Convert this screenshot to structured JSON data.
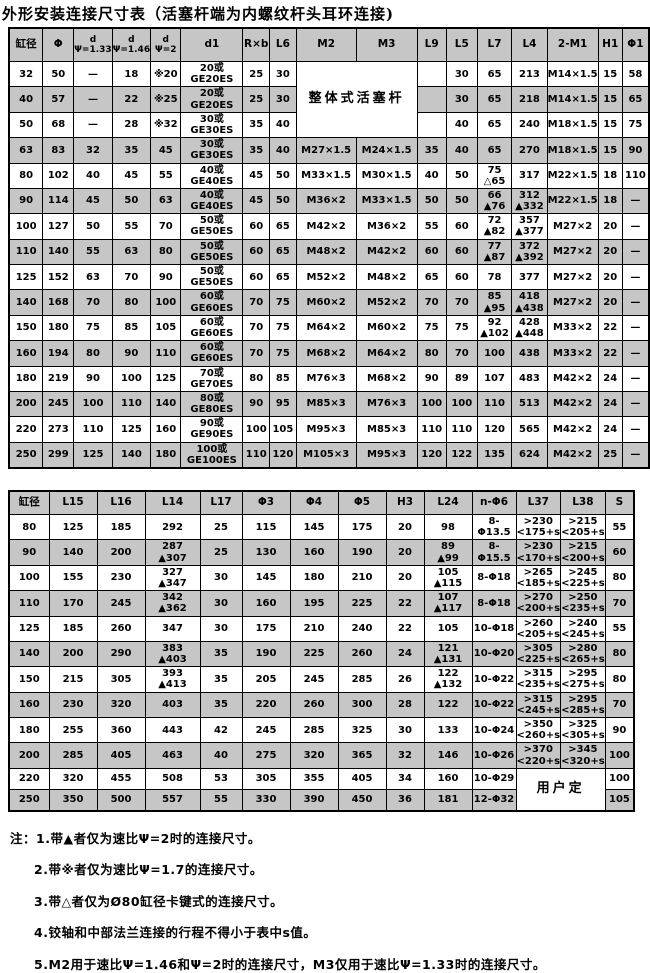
{
  "title": "外形安装连接尺寸表（活塞杆端为内螺纹杆头耳环连接)",
  "table1": {
    "headers": [
      "缸径",
      "Φ",
      "d\nΨ=1.33",
      "d\nΨ=1.46",
      "d\nΨ=2",
      "d1",
      "R×b",
      "L6",
      "M2",
      "M3",
      "L9",
      "L5",
      "L7",
      "L4",
      "2-M1",
      "H1",
      "Φ1"
    ],
    "merges": [
      {
        "row": 0,
        "col": 8,
        "rowspan": 3,
        "colspan": 2,
        "text": "整体式活塞杆"
      }
    ],
    "rows": [
      [
        "32",
        "50",
        "—",
        "18",
        "※20",
        "20或GE20ES",
        "25",
        "30",
        null,
        null,
        "",
        "30",
        "65",
        "213",
        "M14×1.5",
        "15",
        "58"
      ],
      [
        "40",
        "57",
        "—",
        "22",
        "※25",
        "20或GE20ES",
        "25",
        "30",
        null,
        null,
        "",
        "30",
        "65",
        "218",
        "M14×1.5",
        "15",
        "65"
      ],
      [
        "50",
        "68",
        "—",
        "28",
        "※32",
        "30或GE30ES",
        "35",
        "40",
        null,
        null,
        "",
        "40",
        "65",
        "240",
        "M18×1.5",
        "15",
        "75"
      ],
      [
        "63",
        "83",
        "32",
        "35",
        "45",
        "30或GE30ES",
        "35",
        "40",
        "M27×1.5",
        "M24×1.5",
        "35",
        "40",
        "65",
        "270",
        "M18×1.5",
        "15",
        "90"
      ],
      [
        "80",
        "102",
        "40",
        "45",
        "55",
        "40或GE40ES",
        "45",
        "50",
        "M33×1.5",
        "M30×1.5",
        "40",
        "50",
        "75\n△65",
        "317",
        "M22×1.5",
        "18",
        "110"
      ],
      [
        "90",
        "114",
        "45",
        "50",
        "63",
        "40或GE40ES",
        "45",
        "50",
        "M36×2",
        "M33×1.5",
        "50",
        "50",
        "66\n▲76",
        "312\n▲332",
        "M22×1.5",
        "18",
        "—"
      ],
      [
        "100",
        "127",
        "50",
        "55",
        "70",
        "50或GE50ES",
        "60",
        "65",
        "M42×2",
        "M36×2",
        "55",
        "60",
        "72\n▲82",
        "357\n▲377",
        "M27×2",
        "20",
        "—"
      ],
      [
        "110",
        "140",
        "55",
        "63",
        "80",
        "50或GE50ES",
        "60",
        "65",
        "M48×2",
        "M42×2",
        "60",
        "60",
        "77\n▲87",
        "372\n▲392",
        "M27×2",
        "20",
        "—"
      ],
      [
        "125",
        "152",
        "63",
        "70",
        "90",
        "50或GE50ES",
        "60",
        "65",
        "M52×2",
        "M48×2",
        "65",
        "60",
        "78",
        "377",
        "M27×2",
        "20",
        "—"
      ],
      [
        "140",
        "168",
        "70",
        "80",
        "100",
        "60或GE60ES",
        "70",
        "75",
        "M60×2",
        "M52×2",
        "70",
        "70",
        "85\n▲95",
        "418\n▲438",
        "M27×2",
        "20",
        "—"
      ],
      [
        "150",
        "180",
        "75",
        "85",
        "105",
        "60或GE60ES",
        "70",
        "75",
        "M64×2",
        "M60×2",
        "75",
        "75",
        "92\n▲102",
        "428\n▲448",
        "M33×2",
        "22",
        "—"
      ],
      [
        "160",
        "194",
        "80",
        "90",
        "110",
        "60或GE60ES",
        "70",
        "75",
        "M68×2",
        "M64×2",
        "80",
        "70",
        "100",
        "438",
        "M33×2",
        "22",
        "—"
      ],
      [
        "180",
        "219",
        "90",
        "100",
        "125",
        "70或GE70ES",
        "80",
        "85",
        "M76×3",
        "M68×2",
        "90",
        "89",
        "107",
        "483",
        "M42×2",
        "24",
        "—"
      ],
      [
        "200",
        "245",
        "100",
        "110",
        "140",
        "80或GE80ES",
        "90",
        "95",
        "M85×3",
        "M76×3",
        "100",
        "100",
        "110",
        "513",
        "M42×2",
        "24",
        "—"
      ],
      [
        "220",
        "273",
        "110",
        "125",
        "160",
        "90或GE90ES",
        "100",
        "105",
        "M95×3",
        "M85×3",
        "110",
        "110",
        "120",
        "565",
        "M42×2",
        "24",
        "—"
      ],
      [
        "250",
        "299",
        "125",
        "140",
        "180",
        "100或GE100ES",
        "110",
        "120",
        "M105×3",
        "M95×3",
        "120",
        "122",
        "135",
        "624",
        "M42×2",
        "25",
        "—"
      ]
    ]
  },
  "table2": {
    "headers": [
      "缸径",
      "L15",
      "L16",
      "L14",
      "L17",
      "Φ3",
      "Φ4",
      "Φ5",
      "H3",
      "L24",
      "n-Φ6",
      "L37",
      "L38",
      "S"
    ],
    "merges": [
      {
        "row": 10,
        "col": 11,
        "rowspan": 2,
        "colspan": 2,
        "text": "用户定"
      }
    ],
    "rows": [
      [
        "80",
        "125",
        "185",
        "292",
        "25",
        "115",
        "145",
        "175",
        "20",
        "98",
        "8-Φ13.5",
        ">230\n<175+s",
        ">215\n<205+s",
        "55"
      ],
      [
        "90",
        "140",
        "200",
        "287\n▲307",
        "25",
        "130",
        "160",
        "190",
        "20",
        "89\n▲99",
        "8-Φ15.5",
        ">230\n<170+s",
        ">215\n<200+s",
        "60"
      ],
      [
        "100",
        "155",
        "230",
        "327\n▲347",
        "30",
        "145",
        "180",
        "210",
        "20",
        "105\n▲115",
        "8-Φ18",
        ">265\n<185+s",
        ">245\n<225+s",
        "80"
      ],
      [
        "110",
        "170",
        "245",
        "342\n▲362",
        "30",
        "160",
        "195",
        "225",
        "22",
        "107\n▲117",
        "8-Φ18",
        ">270\n<200+s",
        ">250\n<235+s",
        "70"
      ],
      [
        "125",
        "185",
        "260",
        "347",
        "30",
        "175",
        "210",
        "240",
        "22",
        "105",
        "10-Φ18",
        ">260\n<205+s",
        ">240\n<245+s",
        "55"
      ],
      [
        "140",
        "200",
        "290",
        "383\n▲403",
        "35",
        "190",
        "225",
        "260",
        "24",
        "121\n▲131",
        "10-Φ20",
        ">305\n<225+s",
        ">280\n<265+s",
        "80"
      ],
      [
        "150",
        "215",
        "305",
        "393\n▲413",
        "35",
        "205",
        "245",
        "285",
        "26",
        "122\n▲132",
        "10-Φ22",
        ">315\n<235+s",
        ">295\n<275+s",
        "80"
      ],
      [
        "160",
        "230",
        "320",
        "403",
        "35",
        "220",
        "260",
        "300",
        "28",
        "122",
        "10-Φ22",
        ">315\n<245+s",
        ">295\n<285+s",
        "70"
      ],
      [
        "180",
        "255",
        "360",
        "443",
        "42",
        "245",
        "285",
        "325",
        "30",
        "133",
        "10-Φ24",
        ">350\n<260+s",
        ">325\n<305+s",
        "90"
      ],
      [
        "200",
        "285",
        "405",
        "463",
        "40",
        "275",
        "320",
        "365",
        "32",
        "146",
        "10-Φ26",
        ">370\n<220+s",
        ">345\n<320+s",
        "100"
      ],
      [
        "220",
        "320",
        "455",
        "508",
        "53",
        "305",
        "355",
        "405",
        "34",
        "160",
        "10-Φ29",
        null,
        null,
        "100"
      ],
      [
        "250",
        "350",
        "500",
        "557",
        "55",
        "330",
        "390",
        "450",
        "36",
        "181",
        "12-Φ32",
        null,
        null,
        "105"
      ]
    ]
  },
  "notes": {
    "label": "注：",
    "items": [
      "1.带▲者仅为速比Ψ=2时的连接尺寸。",
      "2.带※者仅为速比Ψ=1.7的连接尺寸。",
      "3.带△者仅为Ø80缸径卡键式的连接尺寸。",
      "4.铰轴和中部法兰连接的行程不得小于表中s值。",
      "5.M2用于速比Ψ=1.46和Ψ=2时的连接尺寸，M3仅用于速比Ψ=1.33时的连接尺寸。"
    ]
  }
}
